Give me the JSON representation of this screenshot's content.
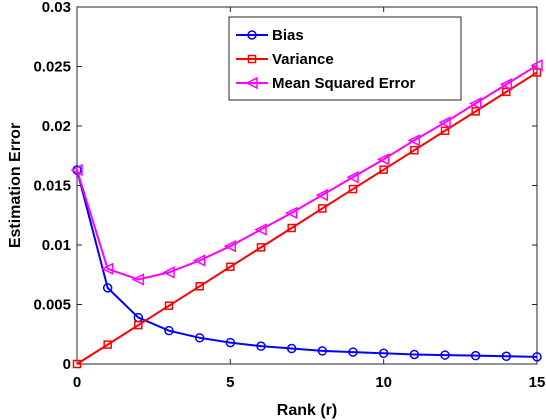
{
  "chart_data": {
    "type": "line",
    "title": "",
    "xlabel": "Rank (r)",
    "ylabel": "Estimation Error",
    "xlim": [
      0,
      15
    ],
    "ylim": [
      0,
      0.03
    ],
    "xticks": [
      0,
      5,
      10,
      15
    ],
    "xtick_labels": [
      "0",
      "5",
      "10",
      "15"
    ],
    "yticks": [
      0,
      0.005,
      0.01,
      0.015,
      0.02,
      0.025,
      0.03
    ],
    "ytick_labels": [
      "0",
      "0.005",
      "0.01",
      "0.015",
      "0.02",
      "0.025",
      "0.03"
    ],
    "grid": false,
    "legend_position": "top-right",
    "x": [
      0,
      1,
      2,
      3,
      4,
      5,
      6,
      7,
      8,
      9,
      10,
      11,
      12,
      13,
      14,
      15
    ],
    "series": [
      {
        "name": "Bias",
        "color": "#0000ff",
        "marker": "circle",
        "values": [
          0.0163,
          0.0064,
          0.0039,
          0.0028,
          0.0022,
          0.0018,
          0.0015,
          0.0013,
          0.0011,
          0.001,
          0.0009,
          0.0008,
          0.00075,
          0.0007,
          0.00065,
          0.0006
        ]
      },
      {
        "name": "Variance",
        "color": "#ff0000",
        "marker": "square",
        "values": [
          0,
          0.00163,
          0.00327,
          0.0049,
          0.00653,
          0.00817,
          0.0098,
          0.01143,
          0.01307,
          0.0147,
          0.01633,
          0.01797,
          0.0196,
          0.02123,
          0.02287,
          0.0245
        ]
      },
      {
        "name": "Mean Squared Error",
        "color": "#ff00ff",
        "marker": "triangle-left",
        "values": [
          0.0163,
          0.008,
          0.0071,
          0.0077,
          0.0087,
          0.0099,
          0.0113,
          0.0127,
          0.0142,
          0.0157,
          0.0172,
          0.0188,
          0.0203,
          0.0219,
          0.0235,
          0.0251
        ]
      }
    ]
  }
}
